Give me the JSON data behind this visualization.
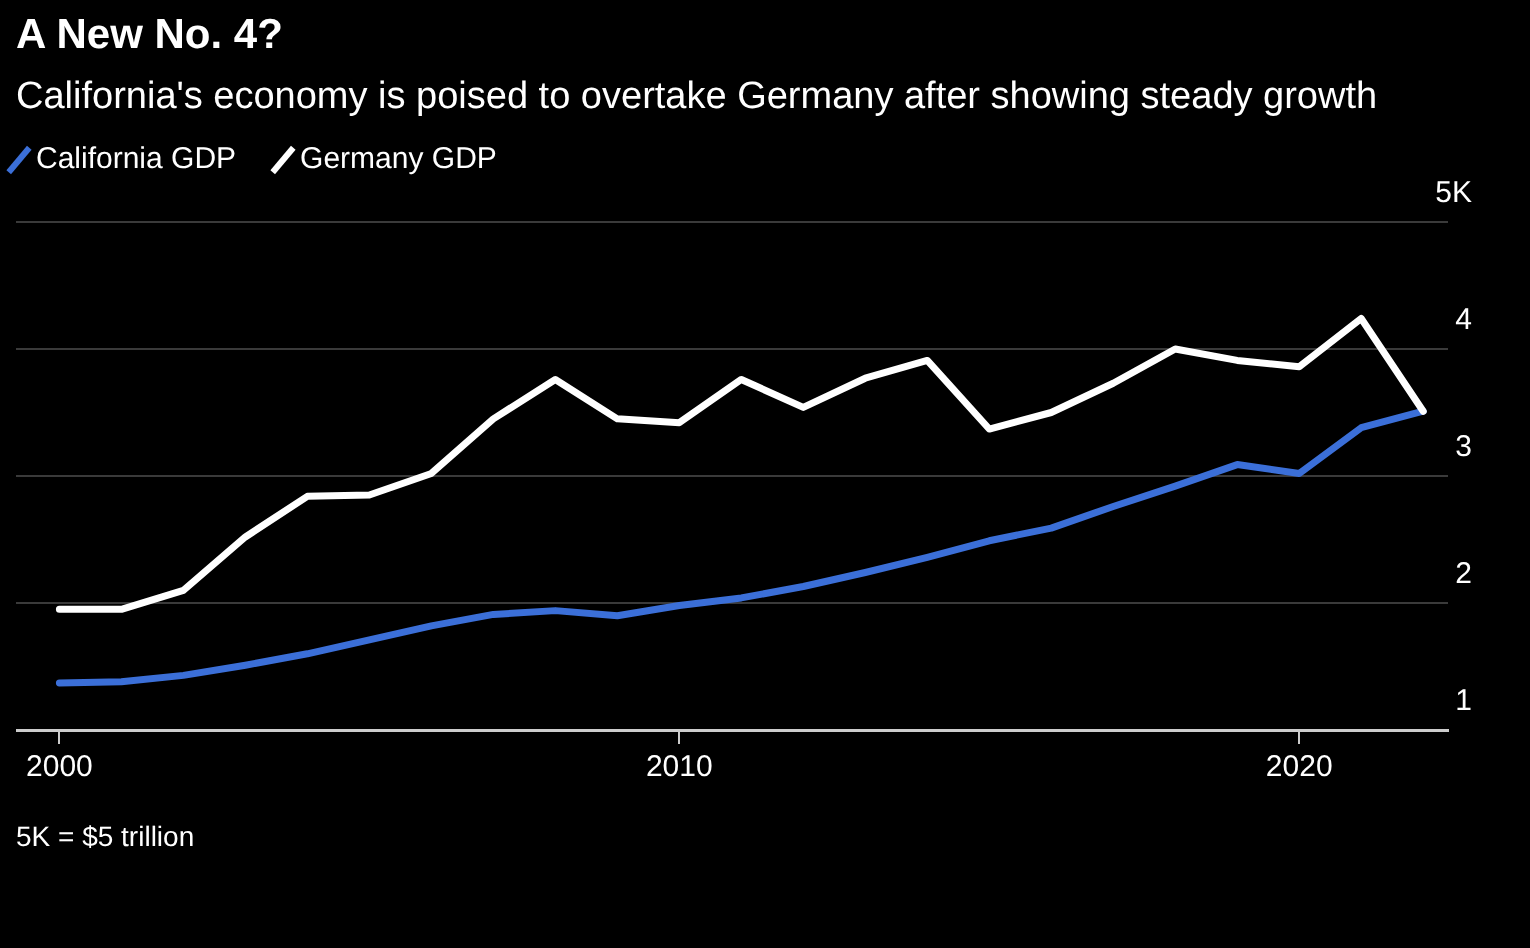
{
  "chart_data": {
    "type": "line",
    "title": "A New No. 4?",
    "subtitle": "California's economy is poised to overtake Germany after showing steady growth",
    "x": [
      2000,
      2001,
      2002,
      2003,
      2004,
      2005,
      2006,
      2007,
      2008,
      2009,
      2010,
      2011,
      2012,
      2013,
      2014,
      2015,
      2016,
      2017,
      2018,
      2019,
      2020,
      2021,
      2022
    ],
    "series": [
      {
        "name": "California GDP",
        "color": "#3b6fd8",
        "values": [
          1.37,
          1.38,
          1.43,
          1.51,
          1.6,
          1.71,
          1.82,
          1.91,
          1.94,
          1.9,
          1.98,
          2.04,
          2.13,
          2.24,
          2.36,
          2.49,
          2.59,
          2.76,
          2.92,
          3.09,
          3.02,
          3.38,
          3.51
        ]
      },
      {
        "name": "Germany GDP",
        "color": "#ffffff",
        "values": [
          1.95,
          1.95,
          2.1,
          2.52,
          2.84,
          2.85,
          3.02,
          3.45,
          3.76,
          3.45,
          3.42,
          3.76,
          3.54,
          3.77,
          3.91,
          3.37,
          3.5,
          3.73,
          4.0,
          3.91,
          3.86,
          4.24,
          3.51
        ]
      }
    ],
    "xlim": [
      1999.3,
      2022.4
    ],
    "xticks": [
      2000,
      2010,
      2020
    ],
    "ylim": [
      1,
      5
    ],
    "yticks": [
      1,
      2,
      3,
      4,
      {
        "value": 5,
        "label": "5K"
      }
    ],
    "grid": "y",
    "legend": "top left",
    "marker": "none",
    "line_style": "solid",
    "annotations": [
      "5K = $5 trillion"
    ]
  }
}
